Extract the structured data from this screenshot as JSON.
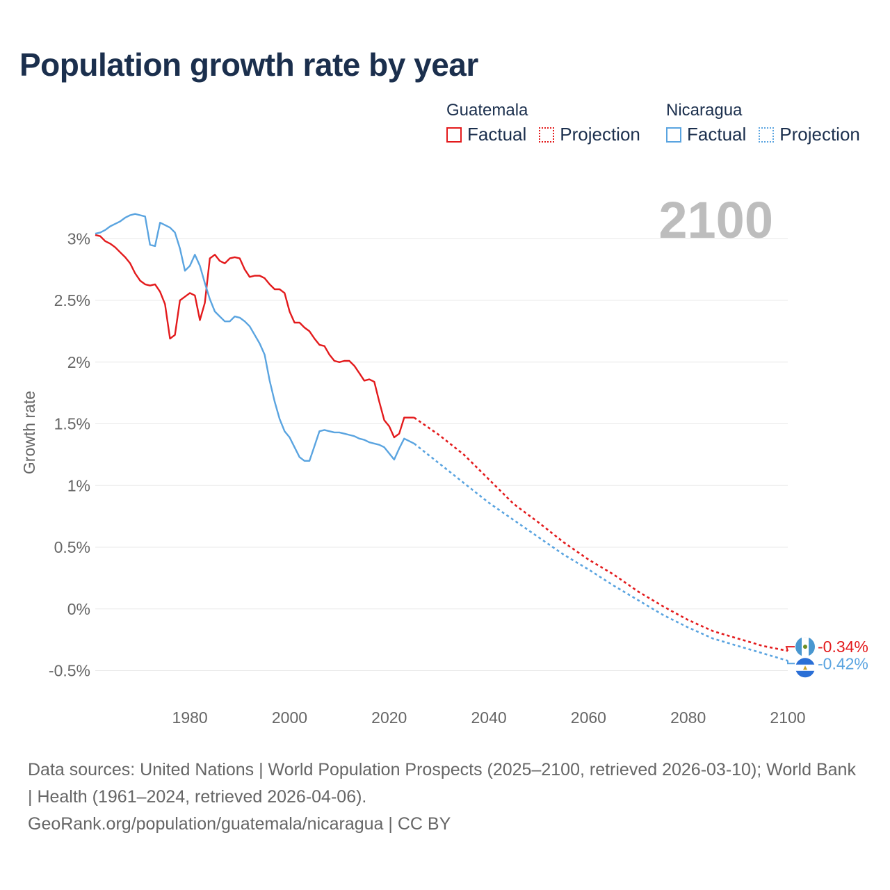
{
  "header": {
    "title": "Population growth rate by year"
  },
  "legend": {
    "groups": [
      {
        "country": "Guatemala",
        "factual_label": "Factual",
        "projection_label": "Projection",
        "color": "#e31a1c"
      },
      {
        "country": "Nicaragua",
        "factual_label": "Factual",
        "projection_label": "Projection",
        "color": "#5aa4e0"
      }
    ]
  },
  "footer": {
    "sources": "Data sources: United Nations | World Population Prospects (2025–2100, retrieved 2026-03-10); World Bank | Health (1961–2024, retrieved 2026-04-06).",
    "credit": "GeoRank.org/population/guatemala/nicaragua | CC BY"
  },
  "chart_data": {
    "type": "line",
    "title": "Population growth rate by year",
    "ylabel": "Growth rate",
    "xlabel": "",
    "year_label": "2100",
    "xlim": [
      1961,
      2100
    ],
    "ylim": [
      -0.7,
      3.3
    ],
    "xticks": [
      1980,
      2000,
      2020,
      2040,
      2060,
      2080,
      2100
    ],
    "yticks": [
      {
        "value": 3.0,
        "label": "3%"
      },
      {
        "value": 2.5,
        "label": "2.5%"
      },
      {
        "value": 2.0,
        "label": "2%"
      },
      {
        "value": 1.5,
        "label": "1.5%"
      },
      {
        "value": 1.0,
        "label": "1%"
      },
      {
        "value": 0.5,
        "label": "0.5%"
      },
      {
        "value": 0.0,
        "label": "0%"
      },
      {
        "value": -0.5,
        "label": "-0.5%"
      }
    ],
    "series": [
      {
        "name": "Guatemala",
        "color": "#e31a1c",
        "end_label": "-0.34%",
        "end_value": -0.34,
        "factual": [
          [
            1961,
            3.03
          ],
          [
            1962,
            3.02
          ],
          [
            1963,
            2.98
          ],
          [
            1964,
            2.96
          ],
          [
            1965,
            2.93
          ],
          [
            1966,
            2.89
          ],
          [
            1967,
            2.85
          ],
          [
            1968,
            2.8
          ],
          [
            1969,
            2.72
          ],
          [
            1970,
            2.66
          ],
          [
            1971,
            2.63
          ],
          [
            1972,
            2.62
          ],
          [
            1973,
            2.63
          ],
          [
            1974,
            2.57
          ],
          [
            1975,
            2.47
          ],
          [
            1976,
            2.19
          ],
          [
            1977,
            2.22
          ],
          [
            1978,
            2.5
          ],
          [
            1979,
            2.53
          ],
          [
            1980,
            2.56
          ],
          [
            1981,
            2.54
          ],
          [
            1982,
            2.34
          ],
          [
            1983,
            2.48
          ],
          [
            1984,
            2.84
          ],
          [
            1985,
            2.87
          ],
          [
            1986,
            2.82
          ],
          [
            1987,
            2.8
          ],
          [
            1988,
            2.84
          ],
          [
            1989,
            2.85
          ],
          [
            1990,
            2.84
          ],
          [
            1991,
            2.75
          ],
          [
            1992,
            2.69
          ],
          [
            1993,
            2.7
          ],
          [
            1994,
            2.7
          ],
          [
            1995,
            2.68
          ],
          [
            1996,
            2.63
          ],
          [
            1997,
            2.59
          ],
          [
            1998,
            2.59
          ],
          [
            1999,
            2.56
          ],
          [
            2000,
            2.41
          ],
          [
            2001,
            2.32
          ],
          [
            2002,
            2.32
          ],
          [
            2003,
            2.28
          ],
          [
            2004,
            2.25
          ],
          [
            2005,
            2.19
          ],
          [
            2006,
            2.14
          ],
          [
            2007,
            2.13
          ],
          [
            2008,
            2.06
          ],
          [
            2009,
            2.01
          ],
          [
            2010,
            2.0
          ],
          [
            2011,
            2.01
          ],
          [
            2012,
            2.01
          ],
          [
            2013,
            1.97
          ],
          [
            2014,
            1.91
          ],
          [
            2015,
            1.85
          ],
          [
            2016,
            1.86
          ],
          [
            2017,
            1.84
          ],
          [
            2018,
            1.68
          ],
          [
            2019,
            1.53
          ],
          [
            2020,
            1.48
          ],
          [
            2021,
            1.39
          ],
          [
            2022,
            1.42
          ],
          [
            2023,
            1.55
          ],
          [
            2024,
            1.55
          ],
          [
            2025,
            1.55
          ]
        ],
        "projection": [
          [
            2025,
            1.55
          ],
          [
            2030,
            1.41
          ],
          [
            2035,
            1.25
          ],
          [
            2040,
            1.05
          ],
          [
            2045,
            0.85
          ],
          [
            2050,
            0.7
          ],
          [
            2055,
            0.54
          ],
          [
            2060,
            0.4
          ],
          [
            2065,
            0.28
          ],
          [
            2070,
            0.14
          ],
          [
            2075,
            0.02
          ],
          [
            2080,
            -0.09
          ],
          [
            2085,
            -0.18
          ],
          [
            2090,
            -0.24
          ],
          [
            2095,
            -0.3
          ],
          [
            2100,
            -0.34
          ]
        ]
      },
      {
        "name": "Nicaragua",
        "color": "#5aa4e0",
        "end_label": "-0.42%",
        "end_value": -0.42,
        "factual": [
          [
            1961,
            3.04
          ],
          [
            1962,
            3.05
          ],
          [
            1963,
            3.07
          ],
          [
            1964,
            3.1
          ],
          [
            1965,
            3.12
          ],
          [
            1966,
            3.14
          ],
          [
            1967,
            3.17
          ],
          [
            1968,
            3.19
          ],
          [
            1969,
            3.2
          ],
          [
            1970,
            3.19
          ],
          [
            1971,
            3.18
          ],
          [
            1972,
            2.95
          ],
          [
            1973,
            2.94
          ],
          [
            1974,
            3.13
          ],
          [
            1975,
            3.11
          ],
          [
            1976,
            3.09
          ],
          [
            1977,
            3.05
          ],
          [
            1978,
            2.92
          ],
          [
            1979,
            2.74
          ],
          [
            1980,
            2.78
          ],
          [
            1981,
            2.87
          ],
          [
            1982,
            2.78
          ],
          [
            1983,
            2.64
          ],
          [
            1984,
            2.51
          ],
          [
            1985,
            2.41
          ],
          [
            1986,
            2.37
          ],
          [
            1987,
            2.33
          ],
          [
            1988,
            2.33
          ],
          [
            1989,
            2.37
          ],
          [
            1990,
            2.36
          ],
          [
            1991,
            2.33
          ],
          [
            1992,
            2.29
          ],
          [
            1993,
            2.22
          ],
          [
            1994,
            2.15
          ],
          [
            1995,
            2.06
          ],
          [
            1996,
            1.85
          ],
          [
            1997,
            1.68
          ],
          [
            1998,
            1.54
          ],
          [
            1999,
            1.44
          ],
          [
            2000,
            1.39
          ],
          [
            2001,
            1.31
          ],
          [
            2002,
            1.23
          ],
          [
            2003,
            1.2
          ],
          [
            2004,
            1.2
          ],
          [
            2005,
            1.32
          ],
          [
            2006,
            1.44
          ],
          [
            2007,
            1.45
          ],
          [
            2008,
            1.44
          ],
          [
            2009,
            1.43
          ],
          [
            2010,
            1.43
          ],
          [
            2011,
            1.42
          ],
          [
            2012,
            1.41
          ],
          [
            2013,
            1.4
          ],
          [
            2014,
            1.38
          ],
          [
            2015,
            1.37
          ],
          [
            2016,
            1.35
          ],
          [
            2017,
            1.34
          ],
          [
            2018,
            1.33
          ],
          [
            2019,
            1.31
          ],
          [
            2020,
            1.26
          ],
          [
            2021,
            1.21
          ],
          [
            2022,
            1.3
          ],
          [
            2023,
            1.38
          ],
          [
            2024,
            1.36
          ],
          [
            2025,
            1.34
          ]
        ],
        "projection": [
          [
            2025,
            1.34
          ],
          [
            2030,
            1.18
          ],
          [
            2035,
            1.02
          ],
          [
            2040,
            0.86
          ],
          [
            2045,
            0.72
          ],
          [
            2050,
            0.58
          ],
          [
            2055,
            0.44
          ],
          [
            2060,
            0.32
          ],
          [
            2065,
            0.19
          ],
          [
            2070,
            0.07
          ],
          [
            2075,
            -0.05
          ],
          [
            2080,
            -0.15
          ],
          [
            2085,
            -0.24
          ],
          [
            2090,
            -0.3
          ],
          [
            2095,
            -0.36
          ],
          [
            2100,
            -0.42
          ]
        ]
      }
    ]
  }
}
